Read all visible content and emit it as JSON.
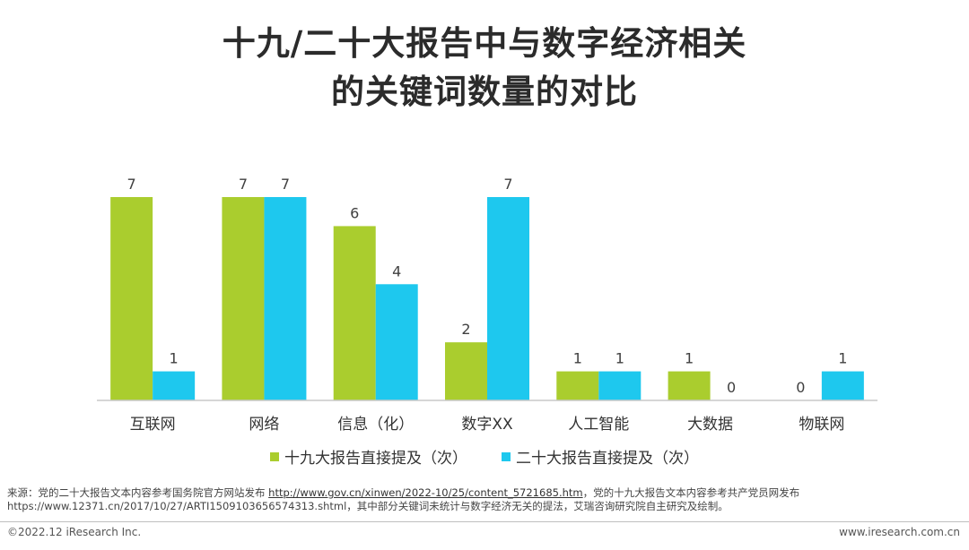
{
  "title": {
    "line1": "十九/二十大报告中与数字经济相关",
    "line2": "的关键词数量的对比"
  },
  "colors": {
    "series1": "#aacd2e",
    "series2": "#1ec8ee",
    "axis": "#c8c8c8",
    "text": "#404040"
  },
  "chart_data": {
    "type": "bar",
    "categories": [
      "互联网",
      "网络",
      "信息（化）",
      "数字XX",
      "人工智能",
      "大数据",
      "物联网"
    ],
    "series": [
      {
        "name": "十九大报告直接提及（次）",
        "values": [
          7,
          7,
          6,
          2,
          1,
          1,
          0
        ]
      },
      {
        "name": "二十大报告直接提及（次）",
        "values": [
          1,
          7,
          4,
          7,
          1,
          0,
          1
        ]
      }
    ],
    "ylim": [
      0,
      7
    ],
    "grid": false,
    "legend_position": "bottom"
  },
  "source": {
    "prefix": "来源：党的二十大报告文本内容参考国务院官方网站发布 ",
    "link": "http://www.gov.cn/xinwen/2022-10/25/content_5721685.htm",
    "middle": "，党的十九大报告文本内容参考共产党员网发布",
    "line2": "https://www.12371.cn/2017/10/27/ARTI1509103656574313.shtml，其中部分关键词未统计与数字经济无关的提法，艾瑞咨询研究院自主研究及绘制。"
  },
  "footer": {
    "left": "©2022.12 iResearch Inc.",
    "right": "www.iresearch.com.cn"
  }
}
